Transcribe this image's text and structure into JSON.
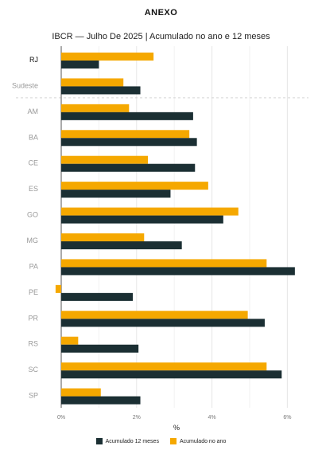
{
  "heading": "ANEXO",
  "chart_data": {
    "type": "bar",
    "orientation": "horizontal",
    "title": "IBCR — Julho De 2025 | Acumulado no ano e 12 meses",
    "xlabel": "%",
    "xlim": [
      -0.2,
      6.3
    ],
    "xticks": [
      "0%",
      "2%",
      "4%",
      "6%"
    ],
    "xtick_values": [
      0,
      2,
      4,
      6
    ],
    "categories": [
      "RJ",
      "Sudeste",
      "AM",
      "BA",
      "CE",
      "ES",
      "GO",
      "MG",
      "PA",
      "PE",
      "PR",
      "RS",
      "SC",
      "SP"
    ],
    "series": [
      {
        "name": "Acumulado no ano",
        "color": "#F5A800",
        "values": [
          2.45,
          1.65,
          1.8,
          3.4,
          2.3,
          3.9,
          4.7,
          2.2,
          5.45,
          -0.15,
          4.95,
          0.45,
          5.45,
          1.05
        ]
      },
      {
        "name": "Acumulado 12 meses",
        "color": "#1B2F33",
        "values": [
          1.0,
          2.1,
          3.5,
          3.6,
          3.55,
          2.9,
          4.3,
          3.2,
          6.2,
          1.9,
          5.4,
          2.05,
          5.85,
          2.1
        ]
      }
    ],
    "legend_order": [
      "Acumulado 12 meses",
      "Acumulado no ano"
    ],
    "legend_position": "bottom",
    "grid": true
  }
}
